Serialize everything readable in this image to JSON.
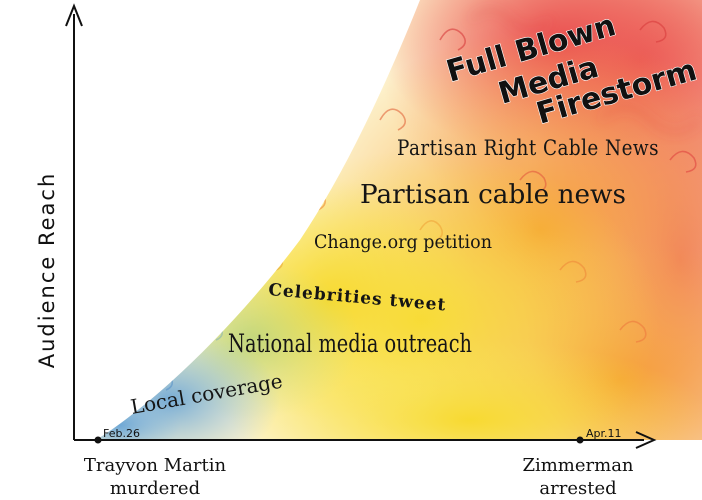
{
  "axes": {
    "y_label": "Audience Reach",
    "x_start_date": "Feb.26",
    "x_end_date": "Apr.11",
    "x_start_caption": [
      "Trayvon Martin",
      "murdered"
    ],
    "x_end_caption": [
      "Zimmerman",
      "arrested"
    ]
  },
  "stages": [
    {
      "label": "Local coverage",
      "color": "#6fa8d8"
    },
    {
      "label": "National media outreach",
      "color": "#f2d23c"
    },
    {
      "label": "Celebrities tweet",
      "color": "#f3c53a"
    },
    {
      "label": "Change.org petition",
      "color": "#f6b13a"
    },
    {
      "label": "Partisan cable news",
      "color": "#f39a3b"
    },
    {
      "label": "Partisan Right Cable News",
      "color": "#ee7744"
    },
    {
      "label": "Full Blown Media Firestorm",
      "color": "#e6504e"
    }
  ],
  "firestorm_lines": [
    "Full Blown",
    "Media",
    "Firestorm"
  ]
}
